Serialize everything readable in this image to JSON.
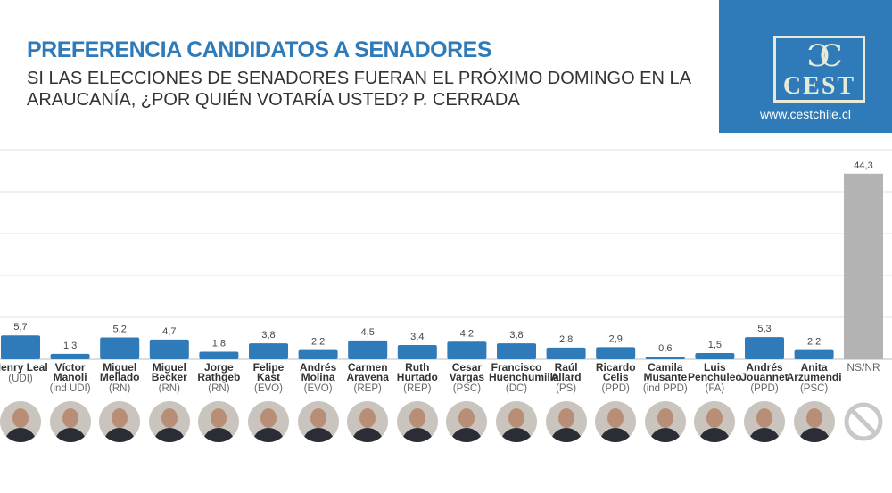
{
  "header": {
    "title": "PREFERENCIA CANDIDATOS A SENADORES",
    "subtitle": "SI LAS ELECCIONES DE SENADORES FUERAN EL PRÓXIMO DOMINGO EN LA ARAUCANÍA, ¿POR QUIÉN VOTARÍA USTED? P. CERRADA"
  },
  "logo": {
    "text": "CEST",
    "url": "www.cestchile.cl",
    "color": "#2f7ab8"
  },
  "chart_data": {
    "type": "bar",
    "ylim": [
      0,
      50
    ],
    "grid": true,
    "bar_color": "#2f7ab8",
    "nsnr_color": "#b3b3b3",
    "categories": [
      {
        "name": "Henry Leal",
        "party": "(UDI)",
        "value": 5.7,
        "label": "5,7"
      },
      {
        "name": "Víctor Manoli",
        "party": "(ind UDI)",
        "value": 1.3,
        "label": "1,3"
      },
      {
        "name": "Miguel Mellado",
        "party": "(RN)",
        "value": 5.2,
        "label": "5,2"
      },
      {
        "name": "Miguel Becker",
        "party": "(RN)",
        "value": 4.7,
        "label": "4,7"
      },
      {
        "name": "Jorge Rathgeb",
        "party": "(RN)",
        "value": 1.8,
        "label": "1,8"
      },
      {
        "name": "Felipe Kast",
        "party": "(EVO)",
        "value": 3.8,
        "label": "3,8"
      },
      {
        "name": "Andrés Molina",
        "party": "(EVO)",
        "value": 2.2,
        "label": "2,2"
      },
      {
        "name": "Carmen Aravena",
        "party": "(REP)",
        "value": 4.5,
        "label": "4,5"
      },
      {
        "name": "Ruth Hurtado",
        "party": "(REP)",
        "value": 3.4,
        "label": "3,4"
      },
      {
        "name": "Cesar Vargas",
        "party": "(PSC)",
        "value": 4.2,
        "label": "4,2"
      },
      {
        "name": "Francisco Huenchumilla",
        "party": "(DC)",
        "value": 3.8,
        "label": "3,8"
      },
      {
        "name": "Raúl Allard",
        "party": "(PS)",
        "value": 2.8,
        "label": "2,8"
      },
      {
        "name": "Ricardo Celis",
        "party": "(PPD)",
        "value": 2.9,
        "label": "2,9"
      },
      {
        "name": "Camila Musante",
        "party": "(ind PPD)",
        "value": 0.6,
        "label": "0,6"
      },
      {
        "name": "Luis Penchuleo",
        "party": "(FA)",
        "value": 1.5,
        "label": "1,5"
      },
      {
        "name": "Andrés Jouannet",
        "party": "(PPD)",
        "value": 5.3,
        "label": "5,3"
      },
      {
        "name": "Anita Arzumendi",
        "party": "(PSC)",
        "value": 2.2,
        "label": "2,2"
      },
      {
        "name": "NS/NR",
        "party": "",
        "value": 44.3,
        "label": "44,3"
      }
    ]
  }
}
